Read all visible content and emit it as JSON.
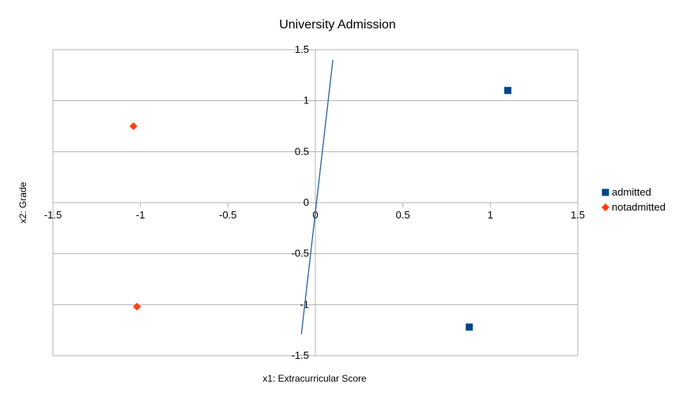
{
  "chart_data": {
    "type": "scatter",
    "title": "University Admission",
    "xlabel": "x1: Extracurricular Score",
    "ylabel": "x2: Grade",
    "xlim": [
      -1.5,
      1.5
    ],
    "ylim": [
      -1.5,
      1.5
    ],
    "x_ticks": [
      "-1.5",
      "-1",
      "-0.5",
      "0",
      "0.5",
      "1",
      "1.5"
    ],
    "y_ticks": [
      "1.5",
      "1",
      "0.5",
      "0",
      "-0.5",
      "-1",
      "-1.5"
    ],
    "grid": "horizontal",
    "legend_position": "right",
    "series": [
      {
        "name": "admitted",
        "marker": "square",
        "color": "#004586",
        "points": [
          [
            1.1,
            1.1
          ],
          [
            0.88,
            -1.22
          ]
        ]
      },
      {
        "name": "notadmitted",
        "marker": "diamond",
        "color": "#ff420e",
        "points": [
          [
            -1.04,
            0.75
          ],
          [
            -1.02,
            -1.02
          ]
        ]
      }
    ],
    "boundary_line": {
      "color": "#2a6099",
      "points": [
        [
          -0.08,
          -1.29
        ],
        [
          0.1,
          1.4
        ]
      ]
    }
  }
}
